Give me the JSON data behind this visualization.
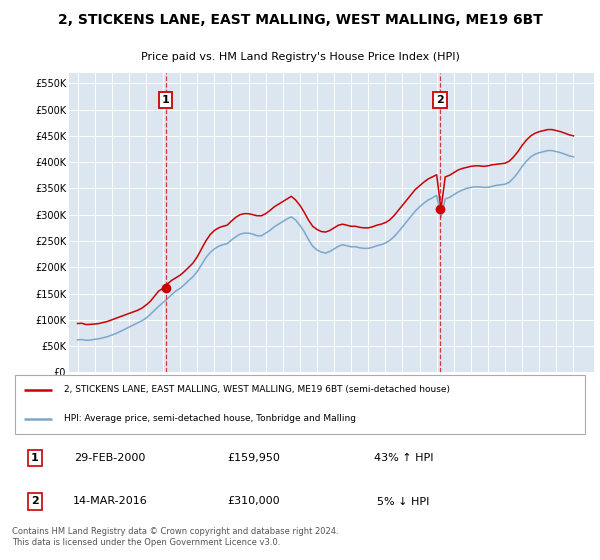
{
  "title": "2, STICKENS LANE, EAST MALLING, WEST MALLING, ME19 6BT",
  "subtitle": "Price paid vs. HM Land Registry's House Price Index (HPI)",
  "ylabel_ticks": [
    "£0",
    "£50K",
    "£100K",
    "£150K",
    "£200K",
    "£250K",
    "£300K",
    "£350K",
    "£400K",
    "£450K",
    "£500K",
    "£550K"
  ],
  "ytick_values": [
    0,
    50000,
    100000,
    150000,
    200000,
    250000,
    300000,
    350000,
    400000,
    450000,
    500000,
    550000
  ],
  "ylim": [
    0,
    570000
  ],
  "xlim_start": 1994.5,
  "xlim_end": 2025.2,
  "plot_bg_color": "#dce6f1",
  "grid_color": "#ffffff",
  "red_line_color": "#cc0000",
  "blue_line_color": "#7ba7cc",
  "sale1_year": 2000.16,
  "sale1_price": 159950,
  "sale1_label": "1",
  "sale1_date": "29-FEB-2000",
  "sale1_pct": "43% ↑ HPI",
  "sale2_year": 2016.2,
  "sale2_price": 310000,
  "sale2_label": "2",
  "sale2_date": "14-MAR-2016",
  "sale2_pct": "5% ↓ HPI",
  "legend_red": "2, STICKENS LANE, EAST MALLING, WEST MALLING, ME19 6BT (semi-detached house)",
  "legend_blue": "HPI: Average price, semi-detached house, Tonbridge and Malling",
  "footer": "Contains HM Land Registry data © Crown copyright and database right 2024.\nThis data is licensed under the Open Government Licence v3.0.",
  "red_data_x": [
    1995.0,
    1995.25,
    1995.5,
    1995.75,
    1996.0,
    1996.25,
    1996.5,
    1996.75,
    1997.0,
    1997.25,
    1997.5,
    1997.75,
    1998.0,
    1998.25,
    1998.5,
    1998.75,
    1999.0,
    1999.25,
    1999.5,
    1999.75,
    2000.0,
    2000.25,
    2000.5,
    2000.75,
    2001.0,
    2001.25,
    2001.5,
    2001.75,
    2002.0,
    2002.25,
    2002.5,
    2002.75,
    2003.0,
    2003.25,
    2003.5,
    2003.75,
    2004.0,
    2004.25,
    2004.5,
    2004.75,
    2005.0,
    2005.25,
    2005.5,
    2005.75,
    2006.0,
    2006.25,
    2006.5,
    2006.75,
    2007.0,
    2007.25,
    2007.5,
    2007.75,
    2008.0,
    2008.25,
    2008.5,
    2008.75,
    2009.0,
    2009.25,
    2009.5,
    2009.75,
    2010.0,
    2010.25,
    2010.5,
    2010.75,
    2011.0,
    2011.25,
    2011.5,
    2011.75,
    2012.0,
    2012.25,
    2012.5,
    2012.75,
    2013.0,
    2013.25,
    2013.5,
    2013.75,
    2014.0,
    2014.25,
    2014.5,
    2014.75,
    2015.0,
    2015.25,
    2015.5,
    2015.75,
    2016.0,
    2016.25,
    2016.5,
    2016.75,
    2017.0,
    2017.25,
    2017.5,
    2017.75,
    2018.0,
    2018.25,
    2018.5,
    2018.75,
    2019.0,
    2019.25,
    2019.5,
    2019.75,
    2020.0,
    2020.25,
    2020.5,
    2020.75,
    2021.0,
    2021.25,
    2021.5,
    2021.75,
    2022.0,
    2022.25,
    2022.5,
    2022.75,
    2023.0,
    2023.25,
    2023.5,
    2023.75,
    2024.0
  ],
  "red_data_y": [
    93000,
    93500,
    91000,
    91500,
    92000,
    93000,
    95000,
    97000,
    100000,
    103000,
    106000,
    109000,
    112000,
    115000,
    118000,
    122000,
    128000,
    135000,
    145000,
    155000,
    159950,
    168000,
    175000,
    180000,
    185000,
    192000,
    200000,
    208000,
    220000,
    235000,
    250000,
    262000,
    270000,
    275000,
    278000,
    280000,
    288000,
    295000,
    300000,
    302000,
    302000,
    300000,
    298000,
    298000,
    302000,
    308000,
    315000,
    320000,
    325000,
    330000,
    335000,
    328000,
    318000,
    305000,
    290000,
    278000,
    272000,
    268000,
    267000,
    270000,
    275000,
    280000,
    282000,
    280000,
    278000,
    278000,
    276000,
    275000,
    275000,
    277000,
    280000,
    282000,
    285000,
    290000,
    298000,
    308000,
    318000,
    328000,
    338000,
    348000,
    355000,
    362000,
    368000,
    372000,
    376000,
    310000,
    372000,
    375000,
    380000,
    385000,
    388000,
    390000,
    392000,
    393000,
    393000,
    392000,
    393000,
    395000,
    396000,
    397000,
    398000,
    402000,
    410000,
    420000,
    432000,
    442000,
    450000,
    455000,
    458000,
    460000,
    462000,
    462000,
    460000,
    458000,
    455000,
    452000,
    450000
  ],
  "blue_data_x": [
    1995.0,
    1995.25,
    1995.5,
    1995.75,
    1996.0,
    1996.25,
    1996.5,
    1996.75,
    1997.0,
    1997.25,
    1997.5,
    1997.75,
    1998.0,
    1998.25,
    1998.5,
    1998.75,
    1999.0,
    1999.25,
    1999.5,
    1999.75,
    2000.0,
    2000.25,
    2000.5,
    2000.75,
    2001.0,
    2001.25,
    2001.5,
    2001.75,
    2002.0,
    2002.25,
    2002.5,
    2002.75,
    2003.0,
    2003.25,
    2003.5,
    2003.75,
    2004.0,
    2004.25,
    2004.5,
    2004.75,
    2005.0,
    2005.25,
    2005.5,
    2005.75,
    2006.0,
    2006.25,
    2006.5,
    2006.75,
    2007.0,
    2007.25,
    2007.5,
    2007.75,
    2008.0,
    2008.25,
    2008.5,
    2008.75,
    2009.0,
    2009.25,
    2009.5,
    2009.75,
    2010.0,
    2010.25,
    2010.5,
    2010.75,
    2011.0,
    2011.25,
    2011.5,
    2011.75,
    2012.0,
    2012.25,
    2012.5,
    2012.75,
    2013.0,
    2013.25,
    2013.5,
    2013.75,
    2014.0,
    2014.25,
    2014.5,
    2014.75,
    2015.0,
    2015.25,
    2015.5,
    2015.75,
    2016.0,
    2016.25,
    2016.5,
    2016.75,
    2017.0,
    2017.25,
    2017.5,
    2017.75,
    2018.0,
    2018.25,
    2018.5,
    2018.75,
    2019.0,
    2019.25,
    2019.5,
    2019.75,
    2020.0,
    2020.25,
    2020.5,
    2020.75,
    2021.0,
    2021.25,
    2021.5,
    2021.75,
    2022.0,
    2022.25,
    2022.5,
    2022.75,
    2023.0,
    2023.25,
    2023.5,
    2023.75,
    2024.0
  ],
  "blue_data_y": [
    62000,
    62500,
    61000,
    61500,
    63000,
    64000,
    66000,
    68000,
    71000,
    74000,
    78000,
    82000,
    86000,
    90000,
    94000,
    98000,
    103000,
    110000,
    118000,
    126000,
    133000,
    140000,
    148000,
    155000,
    160000,
    167000,
    175000,
    182000,
    192000,
    205000,
    218000,
    228000,
    235000,
    240000,
    243000,
    245000,
    252000,
    258000,
    263000,
    265000,
    265000,
    263000,
    260000,
    260000,
    265000,
    270000,
    277000,
    282000,
    287000,
    292000,
    296000,
    290000,
    280000,
    268000,
    253000,
    240000,
    233000,
    229000,
    227000,
    230000,
    235000,
    240000,
    243000,
    241000,
    239000,
    239000,
    237000,
    236000,
    236000,
    238000,
    241000,
    243000,
    246000,
    251000,
    258000,
    267000,
    277000,
    287000,
    297000,
    307000,
    315000,
    322000,
    328000,
    332000,
    337000,
    295000,
    330000,
    333000,
    338000,
    343000,
    347000,
    350000,
    352000,
    353000,
    353000,
    352000,
    352000,
    354000,
    356000,
    357000,
    358000,
    362000,
    370000,
    380000,
    392000,
    402000,
    410000,
    415000,
    418000,
    420000,
    422000,
    422000,
    420000,
    418000,
    415000,
    412000,
    410000
  ]
}
